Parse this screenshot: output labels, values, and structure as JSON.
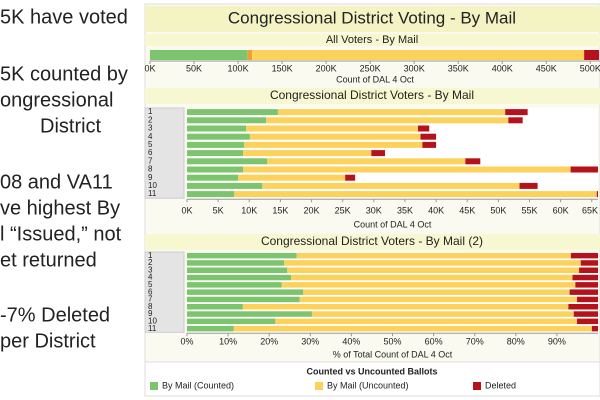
{
  "slide_text": [
    "5K have voted",
    "5K counted by",
    "ongressional",
    "District",
    "08 and VA11",
    "ve highest By",
    "l “Issued,” not",
    "et returned",
    "-7% Deleted",
    "per District"
  ],
  "title": "Congressional District Voting - By Mail",
  "legend_title": "Counted vs Uncounted Ballots",
  "chart_data": [
    {
      "type": "stacked-bar",
      "title": "All Voters - By Mail",
      "x_label": "Count of DAL 4 Oct",
      "xlim": [
        0,
        511000
      ],
      "xticks": [
        {
          "value": 0,
          "label": "0K"
        },
        {
          "value": 50000,
          "label": "50K"
        },
        {
          "value": 100000,
          "label": "100K"
        },
        {
          "value": 150000,
          "label": "150K"
        },
        {
          "value": 200000,
          "label": "200K"
        },
        {
          "value": 250000,
          "label": "250K"
        },
        {
          "value": 300000,
          "label": "300K"
        },
        {
          "value": 350000,
          "label": "350K"
        },
        {
          "value": 400000,
          "label": "400K"
        },
        {
          "value": 450000,
          "label": "450K"
        },
        {
          "value": 500000,
          "label": "500K"
        }
      ],
      "series": [
        {
          "color": "#7dc46e",
          "values": [
            111000
          ]
        },
        {
          "color": "#f0a030",
          "values": [
            5000
          ]
        },
        {
          "color": "#fcd15c",
          "values": [
            377000
          ]
        },
        {
          "color": "#b5121b",
          "values": [
            17000
          ]
        }
      ]
    },
    {
      "type": "stacked-bar",
      "title": "Congressional District Voters -  By Mail",
      "x_label": "Count of DAL 4 Oct",
      "categories": [
        "1",
        "2",
        "3",
        "4",
        "5",
        "6",
        "7",
        "8",
        "9",
        "10",
        "11"
      ],
      "xlim": [
        0,
        66000
      ],
      "xticks": [
        {
          "value": 0,
          "label": "0K"
        },
        {
          "value": 5000,
          "label": "5K"
        },
        {
          "value": 10000,
          "label": "10K"
        },
        {
          "value": 15000,
          "label": "15K"
        },
        {
          "value": 20000,
          "label": "20K"
        },
        {
          "value": 25000,
          "label": "25K"
        },
        {
          "value": 30000,
          "label": "30K"
        },
        {
          "value": 35000,
          "label": "35K"
        },
        {
          "value": 40000,
          "label": "40K"
        },
        {
          "value": 45000,
          "label": "45K"
        },
        {
          "value": 50000,
          "label": "50K"
        },
        {
          "value": 55000,
          "label": "55K"
        },
        {
          "value": 60000,
          "label": "60K"
        },
        {
          "value": 65000,
          "label": "65K"
        }
      ],
      "series": [
        {
          "name": "By Mail (Counted)",
          "color": "#7dc46e",
          "values": [
            14600,
            12700,
            9500,
            10100,
            9200,
            9000,
            12900,
            9000,
            8200,
            12100,
            7600
          ]
        },
        {
          "name": "By Mail (Uncounted)",
          "color": "#fcd15c",
          "values": [
            36500,
            38900,
            27600,
            27400,
            28600,
            20600,
            31800,
            52600,
            17200,
            41300,
            58200
          ]
        },
        {
          "name": "Deleted",
          "color": "#b5121b",
          "values": [
            3600,
            2300,
            1800,
            2500,
            2200,
            2200,
            2400,
            4800,
            1600,
            2900,
            1000
          ]
        }
      ]
    },
    {
      "type": "stacked-bar",
      "title": "Congressional District Voters -  By Mail (2)",
      "x_label": "% of Total Count of DAL 4 Oct",
      "categories": [
        "1",
        "2",
        "3",
        "4",
        "5",
        "6",
        "7",
        "8",
        "9",
        "10",
        "11"
      ],
      "xlim": [
        0,
        100
      ],
      "xticks": [
        {
          "value": 0,
          "label": "0%"
        },
        {
          "value": 10,
          "label": "10%"
        },
        {
          "value": 20,
          "label": "20%"
        },
        {
          "value": 30,
          "label": "30%"
        },
        {
          "value": 40,
          "label": "40%"
        },
        {
          "value": 50,
          "label": "50%"
        },
        {
          "value": 60,
          "label": "60%"
        },
        {
          "value": 70,
          "label": "70%"
        },
        {
          "value": 80,
          "label": "80%"
        },
        {
          "value": 90,
          "label": "90%"
        }
      ],
      "series": [
        {
          "color": "#7dc46e",
          "values": [
            26.7,
            23.6,
            24.4,
            25.3,
            23.0,
            28.3,
            27.4,
            13.6,
            30.4,
            21.5,
            11.4
          ]
        },
        {
          "color": "#fcd15c",
          "values": [
            66.7,
            72.2,
            71.0,
            68.5,
            71.5,
            64.8,
            67.5,
            79.2,
            63.7,
            73.4,
            87.1
          ]
        },
        {
          "color": "#b5121b",
          "values": [
            6.6,
            4.3,
            4.6,
            6.3,
            5.5,
            6.9,
            5.1,
            7.2,
            5.9,
            5.2,
            1.5
          ]
        }
      ]
    }
  ]
}
